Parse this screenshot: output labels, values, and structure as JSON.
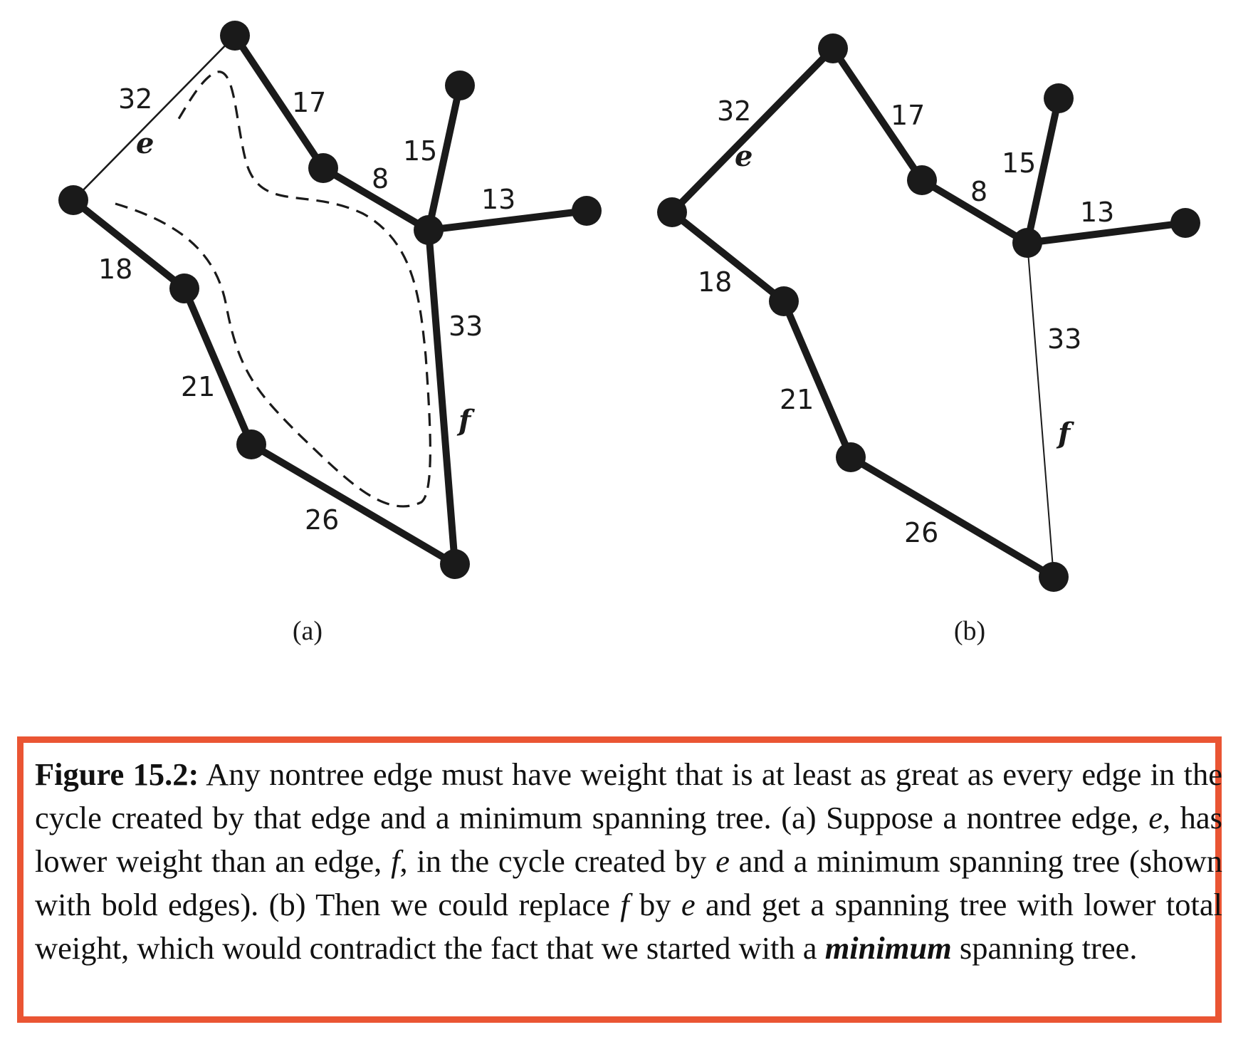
{
  "panels": [
    {
      "id": "a",
      "label": "(a)",
      "weights": {
        "e": "32",
        "ab": "17",
        "bc": "8",
        "cd": "15",
        "ce": "13",
        "f": "33",
        "ag": "18",
        "gh": "21",
        "hi": "26"
      },
      "edge_e_name": "e",
      "edge_f_name": "f",
      "edge_e_in_tree": false,
      "edge_f_in_tree": true,
      "shows_cycle": true
    },
    {
      "id": "b",
      "label": "(b)",
      "weights": {
        "e": "32",
        "ab": "17",
        "bc": "8",
        "cd": "15",
        "ce": "13",
        "f": "33",
        "ag": "18",
        "gh": "21",
        "hi": "26"
      },
      "edge_e_name": "e",
      "edge_f_name": "f",
      "edge_e_in_tree": true,
      "edge_f_in_tree": false,
      "shows_cycle": false
    }
  ],
  "caption": {
    "lead": "Figure 15.2:",
    "p1": " Any nontree edge must have weight that is at least as great as every edge in the cycle created by that edge and a minimum spanning tree. (a) Suppose a nontree edge, ",
    "v1": "e",
    "p2": ", has lower weight than an edge, ",
    "v2": "f",
    "p3": ", in the cycle created by ",
    "v3": "e",
    "p4": " and a minimum spanning tree (shown with bold edges). (b) Then we could replace ",
    "v4": "f",
    "p5": " by ",
    "v5": "e",
    "p6": " and get a spanning tree with lower total weight, which would contradict the fact that we started with a ",
    "emph": "minimum",
    "p7": " spanning tree."
  }
}
